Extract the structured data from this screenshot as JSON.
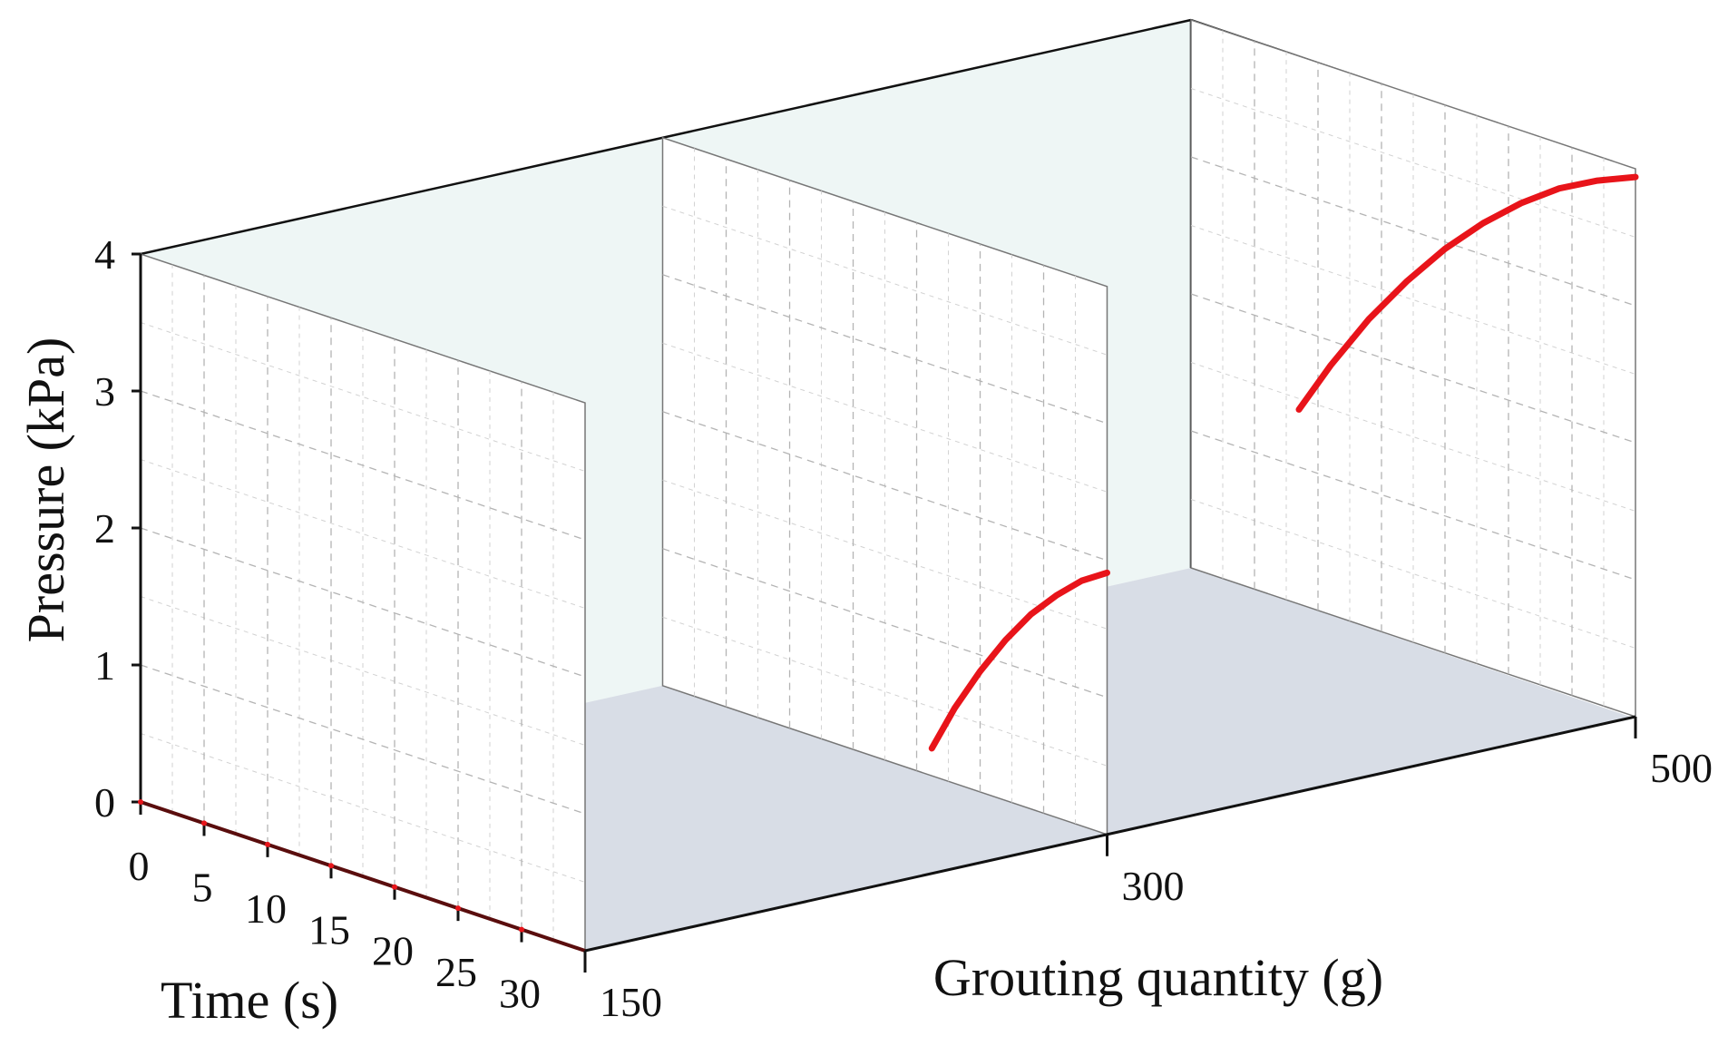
{
  "chart_data": {
    "type": "line",
    "projection": "3d",
    "xlabel": "Time (s)",
    "ylabel": "Pressure (kPa)",
    "zlabel": "Grouting quantity (g)",
    "xlim": [
      0,
      35
    ],
    "ylim": [
      0,
      4
    ],
    "x_ticks": [
      "0",
      "5",
      "10",
      "15",
      "20",
      "25",
      "30"
    ],
    "y_ticks": [
      "0",
      "1",
      "2",
      "3",
      "4"
    ],
    "z_ticks": [
      "150",
      "300",
      "500"
    ],
    "grid": true,
    "series": [
      {
        "grouting_quantity": 150,
        "x": [],
        "y": []
      },
      {
        "grouting_quantity": 300,
        "x": [
          21.2,
          23,
          25,
          27,
          29,
          31,
          33,
          35
        ],
        "y": [
          0.2,
          0.55,
          0.88,
          1.17,
          1.42,
          1.62,
          1.79,
          1.91
        ]
      },
      {
        "grouting_quantity": 500,
        "x": [
          8.5,
          11,
          14,
          17,
          20,
          23,
          26,
          29,
          32,
          35
        ],
        "y": [
          1.42,
          1.82,
          2.25,
          2.62,
          2.95,
          3.23,
          3.47,
          3.67,
          3.82,
          3.94
        ]
      }
    ],
    "colors": {
      "curve": "#e8141a",
      "wall": "#eef6f5",
      "floor": "#d8dde6",
      "grid": "#b4b4b4",
      "axis": "#111111"
    }
  }
}
